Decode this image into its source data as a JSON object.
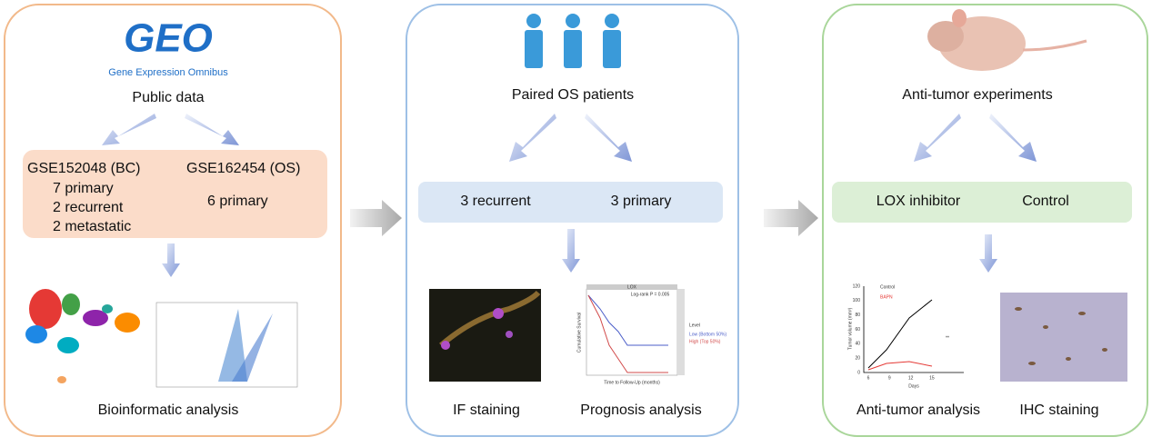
{
  "left": {
    "logo": {
      "title": "GEO",
      "subtitle": "Gene Expression Omnibus"
    },
    "heading": "Public data",
    "datasets": [
      {
        "name": "GSE152048 (BC)",
        "items": [
          "7 primary",
          "2 recurrent",
          "2 metastatic"
        ]
      },
      {
        "name": "GSE162454 (OS)",
        "items": [
          "6 primary"
        ]
      }
    ],
    "caption": "Bioinformatic analysis"
  },
  "middle": {
    "heading": "Paired OS patients",
    "groups": [
      "3 recurrent",
      "3 primary"
    ],
    "km_plot": {
      "title": "LOX",
      "pvalue": "Log-rank P = 0.005",
      "legend_title": "Level",
      "legend": [
        "Low (Bottom 50%)",
        "High (Top 50%)"
      ],
      "ylabel": "Cumulative Survival",
      "xlabel": "Time to Follow-Up (months)"
    },
    "captions": [
      "IF staining",
      "Prognosis analysis"
    ]
  },
  "right": {
    "heading": "Anti-tumor experiments",
    "groups": [
      "LOX inhibitor",
      "Control"
    ],
    "tumor_plot": {
      "legend": [
        "Control",
        "BAPN"
      ],
      "ylabel": "Tumor volume (mm³)",
      "xlabel": "Days",
      "xticks": [
        "6",
        "9",
        "12",
        "15"
      ],
      "yticks": [
        "0",
        "20",
        "40",
        "60",
        "80",
        "100",
        "120"
      ],
      "significance": "**"
    },
    "captions": [
      "Anti-tumor analysis",
      "IHC staining"
    ]
  }
}
